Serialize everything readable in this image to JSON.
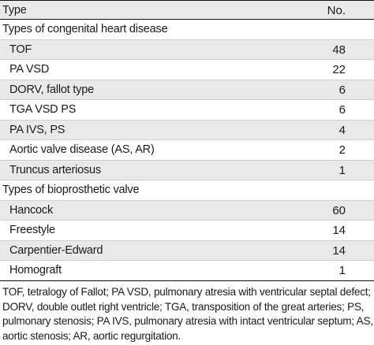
{
  "header": {
    "type_label": "Type",
    "no_label": "No."
  },
  "congenital": {
    "title": "Types of congenital heart disease",
    "rows": [
      {
        "label": "TOF",
        "value": "48"
      },
      {
        "label": "PA VSD",
        "value": "22"
      },
      {
        "label": "DORV, fallot type",
        "value": "6"
      },
      {
        "label": "TGA VSD PS",
        "value": "6"
      },
      {
        "label": "PA IVS, PS",
        "value": "4"
      },
      {
        "label": "Aortic valve disease (AS, AR)",
        "value": "2"
      },
      {
        "label": "Truncus arteriosus",
        "value": "1"
      }
    ]
  },
  "valve": {
    "title": "Types of bioprosthetic valve",
    "rows": [
      {
        "label": "Hancock",
        "value": "60"
      },
      {
        "label": "Freestyle",
        "value": "14"
      },
      {
        "label": "Carpentier-Edward",
        "value": "14"
      },
      {
        "label": "Homograft",
        "value": "1"
      }
    ]
  },
  "footnote": "TOF, tetralogy of Fallot; PA VSD, pulmonary atresia with ventricular septal defect; DORV, double outlet right ventricle; TGA, transposition of the great arteries; PS, pulmonary stenosis; PA IVS, pulmonary atresia with intact ventricular septum; AS, aortic stenosis; AR, aortic regurgitation."
}
